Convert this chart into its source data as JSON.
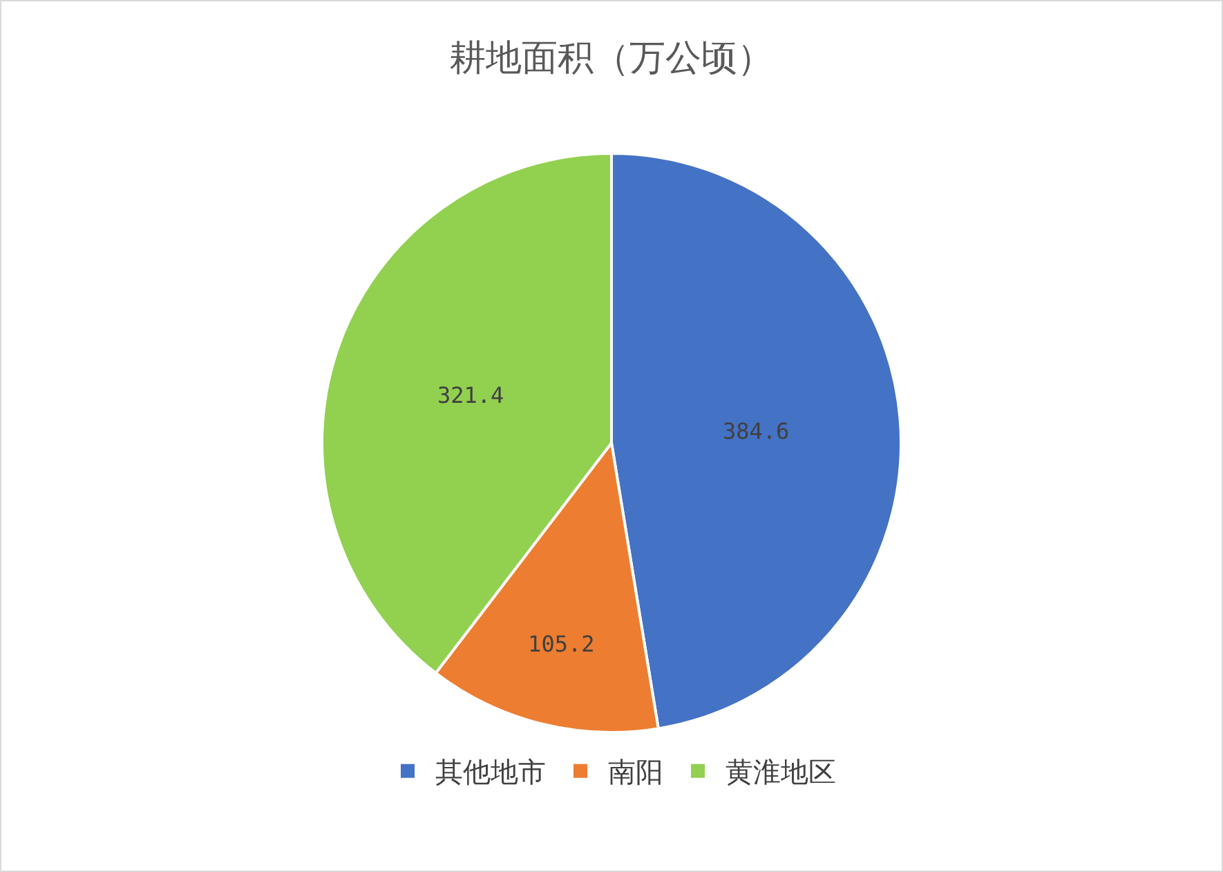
{
  "chart_data": {
    "type": "pie",
    "title": "耕地面积（万公顷）",
    "categories": [
      "其他地市",
      "南阳",
      "黄淮地区"
    ],
    "values": [
      384.6,
      105.2,
      321.4
    ],
    "colors": [
      "#4472c4",
      "#ed7d31",
      "#92d050"
    ],
    "data_labels": true,
    "legend": "bottom"
  }
}
